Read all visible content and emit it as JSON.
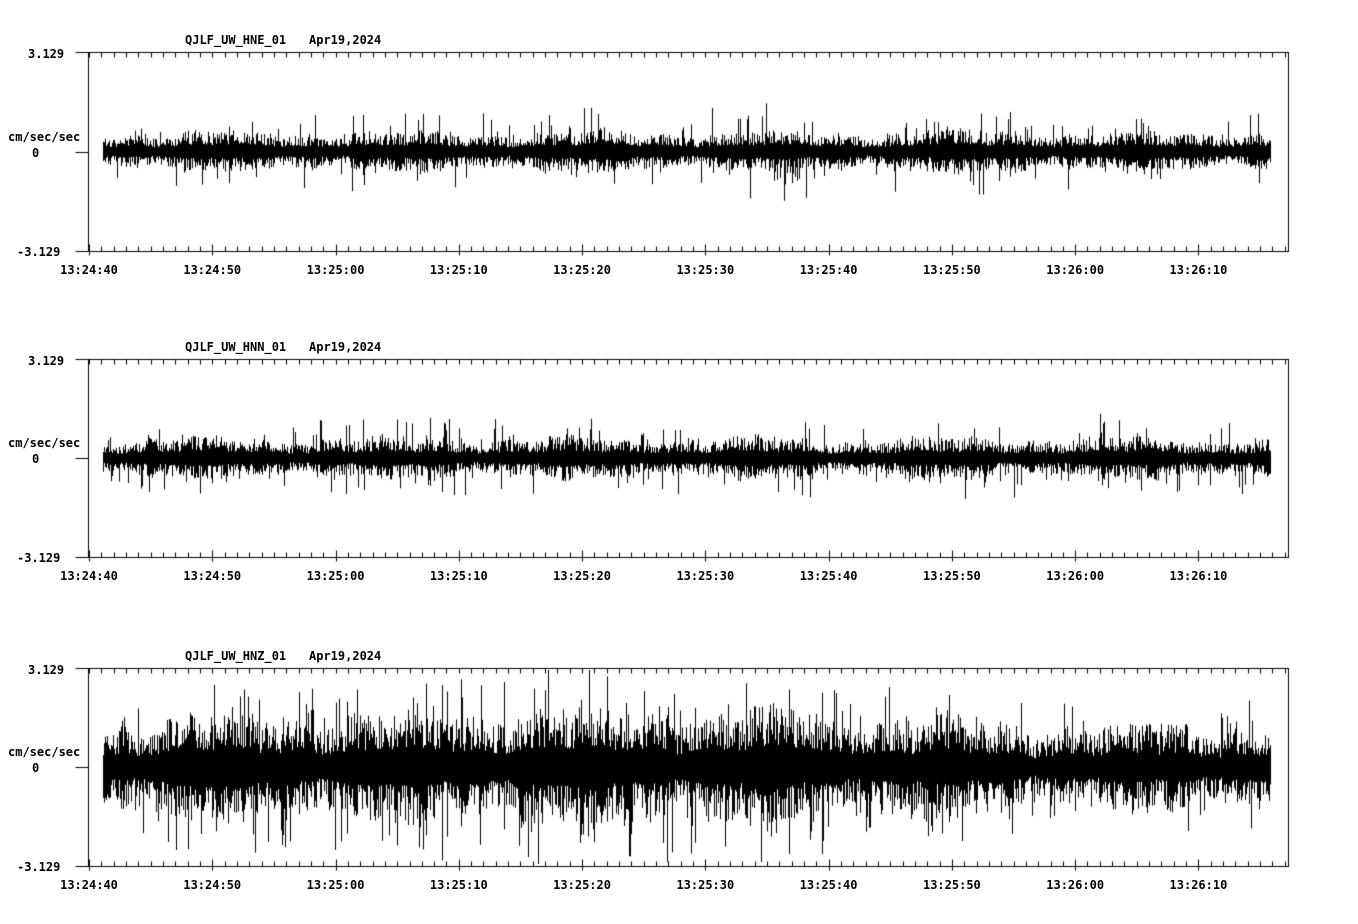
{
  "colors": {
    "background": "#ffffff",
    "trace": "#000000"
  },
  "chart_data": [
    {
      "type": "line",
      "subtype": "seismogram",
      "title": {
        "station_channel": "QJLF_UW_HNE_01",
        "date": "Apr19,2024"
      },
      "ylabel": "cm/sec/sec",
      "y_tick_labels": {
        "top": "3.129",
        "zero": "0",
        "bottom": "-3.129"
      },
      "ylim": [
        -3.129,
        3.129
      ],
      "x_tick_labels": [
        "13:24:40",
        "13:24:50",
        "13:25:00",
        "13:25:10",
        "13:25:20",
        "13:25:30",
        "13:25:40",
        "13:25:50",
        "13:26:00",
        "13:26:10"
      ],
      "x_major_interval_sec": 10,
      "x_minor_interval_sec": 1,
      "trace_window_sec": [
        1.15,
        95.8
      ],
      "envelope": {
        "t_sec": [
          0,
          5,
          10,
          15,
          20,
          25,
          30,
          35,
          40,
          45,
          50,
          55,
          60,
          65,
          70,
          75,
          80,
          85,
          90,
          95
        ],
        "rms_amp": [
          0.4,
          0.4,
          0.41,
          0.4,
          0.41,
          0.42,
          0.4,
          0.42,
          0.43,
          0.41,
          0.4,
          0.42,
          0.4,
          0.4,
          0.44,
          0.42,
          0.43,
          0.4,
          0.38,
          0.42
        ],
        "peak_amp": [
          1.05,
          1.1,
          1.05,
          1.1,
          1.15,
          1.2,
          1.1,
          1.2,
          1.45,
          1.15,
          1.25,
          1.65,
          1.2,
          1.15,
          1.35,
          1.2,
          1.35,
          1.1,
          1.05,
          1.15
        ]
      }
    },
    {
      "type": "line",
      "subtype": "seismogram",
      "title": {
        "station_channel": "QJLF_UW_HNN_01",
        "date": "Apr19,2024"
      },
      "ylabel": "cm/sec/sec",
      "y_tick_labels": {
        "top": "3.129",
        "zero": "0",
        "bottom": "-3.129"
      },
      "ylim": [
        -3.129,
        3.129
      ],
      "x_tick_labels": [
        "13:24:40",
        "13:24:50",
        "13:25:00",
        "13:25:10",
        "13:25:20",
        "13:25:30",
        "13:25:40",
        "13:25:50",
        "13:26:00",
        "13:26:10"
      ],
      "x_major_interval_sec": 10,
      "x_minor_interval_sec": 1,
      "trace_window_sec": [
        1.15,
        95.8
      ],
      "envelope": {
        "t_sec": [
          0,
          5,
          10,
          15,
          20,
          25,
          30,
          35,
          40,
          45,
          50,
          55,
          60,
          65,
          70,
          75,
          80,
          85,
          90,
          95
        ],
        "rms_amp": [
          0.42,
          0.43,
          0.42,
          0.42,
          0.43,
          0.42,
          0.42,
          0.43,
          0.43,
          0.42,
          0.42,
          0.42,
          0.41,
          0.42,
          0.42,
          0.42,
          0.44,
          0.43,
          0.41,
          0.43
        ],
        "peak_amp": [
          1.15,
          1.45,
          1.1,
          1.15,
          1.2,
          1.25,
          1.15,
          1.3,
          1.4,
          1.2,
          1.15,
          1.25,
          1.2,
          1.15,
          1.2,
          1.3,
          1.4,
          1.35,
          1.2,
          1.25
        ]
      }
    },
    {
      "type": "line",
      "subtype": "seismogram",
      "title": {
        "station_channel": "QJLF_UW_HNZ_01",
        "date": "Apr19,2024"
      },
      "ylabel": "cm/sec/sec",
      "y_tick_labels": {
        "top": "3.129",
        "zero": "0",
        "bottom": "-3.129"
      },
      "ylim": [
        -3.129,
        3.129
      ],
      "x_tick_labels": [
        "13:24:40",
        "13:24:50",
        "13:25:00",
        "13:25:10",
        "13:25:20",
        "13:25:30",
        "13:25:40",
        "13:25:50",
        "13:26:00",
        "13:26:10"
      ],
      "x_major_interval_sec": 10,
      "x_minor_interval_sec": 1,
      "trace_window_sec": [
        1.15,
        95.8
      ],
      "envelope": {
        "t_sec": [
          0,
          5,
          10,
          15,
          20,
          25,
          30,
          35,
          40,
          45,
          50,
          55,
          60,
          65,
          70,
          75,
          80,
          85,
          90,
          95
        ],
        "rms_amp": [
          0.85,
          1.05,
          1.1,
          1.15,
          1.15,
          1.1,
          1.2,
          1.25,
          1.25,
          1.2,
          1.25,
          1.2,
          1.15,
          1.05,
          0.95,
          0.9,
          0.9,
          0.88,
          0.9,
          0.92
        ],
        "peak_amp": [
          1.7,
          2.4,
          2.6,
          2.5,
          2.6,
          2.4,
          2.9,
          3.05,
          3.0,
          2.9,
          3.0,
          2.8,
          2.7,
          2.4,
          2.2,
          1.95,
          1.9,
          1.95,
          2.0,
          2.1
        ]
      }
    }
  ]
}
